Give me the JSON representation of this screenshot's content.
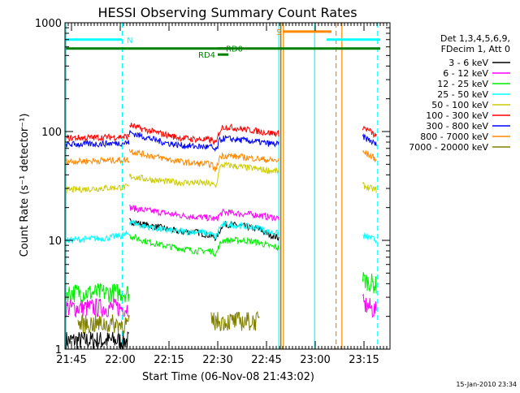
{
  "chart_data": {
    "type": "line",
    "title": "HESSI Observing Summary Count Rates",
    "xlabel": "Start Time (06-Nov-08 21:43:02)",
    "ylabel": "Count Rate (s⁻¹ detector⁻¹)",
    "yscale": "log",
    "ylim": [
      1,
      1000
    ],
    "xlim_minutes": [
      0,
      100
    ],
    "x_unit": "minutes since 21:43:02",
    "x_ticks": [
      {
        "value": 2,
        "label": "21:45"
      },
      {
        "value": 17,
        "label": "22:00"
      },
      {
        "value": 32,
        "label": "22:15"
      },
      {
        "value": 47,
        "label": "22:30"
      },
      {
        "value": 62,
        "label": "22:45"
      },
      {
        "value": 77,
        "label": "23:00"
      },
      {
        "value": 92,
        "label": "23:15"
      }
    ],
    "y_ticks": [
      {
        "value": 1,
        "label": "1"
      },
      {
        "value": 10,
        "label": "10"
      },
      {
        "value": 100,
        "label": "100"
      },
      {
        "value": 1000,
        "label": "1000"
      }
    ],
    "legend": {
      "position": "right",
      "header": [
        "Det 1,3,4,5,6,9,",
        "FDecim 1, Att 0"
      ]
    },
    "series": [
      {
        "name": "3 - 6 keV",
        "color": "#000000",
        "segments": [
          {
            "x": [
              0.3,
              19.8
            ],
            "y": [
              1.2,
              1.2
            ]
          },
          {
            "x": [
              19.8,
              24,
              30,
              35,
              40,
              45,
              46.5,
              47.5,
              48.5,
              50,
              55,
              60,
              62,
              66
            ],
            "y": [
              15,
              14,
              13,
              12,
              12,
              11,
              10.5,
              12,
              14,
              14,
              13.5,
              12.5,
              11.5,
              10.5
            ]
          }
        ]
      },
      {
        "name": "6 - 12 keV",
        "color": "#ff00ff",
        "segments": [
          {
            "x": [
              0.3,
              19.8
            ],
            "y": [
              2.4,
              2.4
            ]
          },
          {
            "x": [
              19.8,
              24,
              30,
              35,
              40,
              45,
              46.5,
              47.5,
              48.5,
              50,
              55,
              60,
              62,
              66
            ],
            "y": [
              20,
              19,
              18,
              17,
              16.5,
              16,
              15.5,
              17,
              18,
              18,
              17.5,
              17,
              16.5,
              16
            ]
          },
          {
            "x": [
              91.6,
              94,
              96
            ],
            "y": [
              2.6,
              2.4,
              2.2
            ]
          }
        ]
      },
      {
        "name": "12 - 25 keV",
        "color": "#00ee00",
        "segments": [
          {
            "x": [
              0.3,
              19.8
            ],
            "y": [
              3.3,
              3.3
            ]
          },
          {
            "x": [
              19.8,
              24,
              30,
              35,
              40,
              45,
              46.5,
              47.5,
              48.5,
              50,
              55,
              60,
              62,
              66
            ],
            "y": [
              11,
              10,
              9,
              8.5,
              8,
              8,
              7.5,
              9,
              10,
              10,
              10,
              9.5,
              9,
              8.5
            ]
          },
          {
            "x": [
              91.6,
              94,
              96
            ],
            "y": [
              4.4,
              4.1,
              3.8
            ]
          }
        ]
      },
      {
        "name": "25 - 50 keV",
        "color": "#00ffff",
        "segments": [
          {
            "x": [
              0.3,
              13,
              19.8
            ],
            "y": [
              10,
              10.5,
              11.5
            ]
          },
          {
            "x": [
              19.8,
              24,
              30,
              35,
              40,
              45,
              46.5,
              47.5,
              48.5,
              50,
              55,
              60,
              62,
              66
            ],
            "y": [
              15,
              13.5,
              12.5,
              12,
              12,
              11.5,
              10.5,
              13,
              14,
              14,
              13.5,
              13,
              12,
              11.5
            ]
          },
          {
            "x": [
              91.6,
              94,
              96
            ],
            "y": [
              11,
              10.5,
              10
            ]
          }
        ]
      },
      {
        "name": "50 - 100 keV",
        "color": "#cccc00",
        "segments": [
          {
            "x": [
              0.3,
              10,
              19.8
            ],
            "y": [
              29,
              30,
              31
            ]
          },
          {
            "x": [
              19.8,
              24,
              30,
              35,
              40,
              45,
              46.5,
              47.5,
              48.5,
              50,
              55,
              60,
              62,
              66
            ],
            "y": [
              39,
              37,
              35,
              34,
              34,
              33,
              31,
              46,
              49,
              49,
              47,
              45,
              44,
              43
            ]
          },
          {
            "x": [
              91.6,
              94,
              96
            ],
            "y": [
              32,
              30,
              29
            ]
          }
        ]
      },
      {
        "name": "100 - 300 keV",
        "color": "#ff0000",
        "segments": [
          {
            "x": [
              0.3,
              10,
              19.8
            ],
            "y": [
              87,
              88,
              90
            ]
          },
          {
            "x": [
              19.8,
              24,
              30,
              35,
              40,
              45,
              46.5,
              47.5,
              48.5,
              50,
              55,
              60,
              62,
              66
            ],
            "y": [
              115,
              105,
              95,
              88,
              85,
              84,
              77,
              100,
              110,
              110,
              105,
              100,
              98,
              95
            ]
          },
          {
            "x": [
              91.6,
              94,
              96
            ],
            "y": [
              110,
              100,
              88
            ]
          }
        ]
      },
      {
        "name": "300 - 800 keV",
        "color": "#0000ff",
        "segments": [
          {
            "x": [
              0.3,
              10,
              19.8
            ],
            "y": [
              76,
              77,
              79
            ]
          },
          {
            "x": [
              19.8,
              24,
              30,
              35,
              40,
              45,
              46.5,
              47.5,
              48.5,
              50,
              55,
              60,
              62,
              66
            ],
            "y": [
              98,
              90,
              80,
              75,
              73,
              72,
              66,
              82,
              86,
              86,
              83,
              80,
              78,
              76
            ]
          },
          {
            "x": [
              91.6,
              94,
              96
            ],
            "y": [
              90,
              82,
              75
            ]
          }
        ]
      },
      {
        "name": "800 - 7000 keV",
        "color": "#ff8800",
        "segments": [
          {
            "x": [
              0.3,
              10,
              19.8
            ],
            "y": [
              53,
              54,
              55
            ]
          },
          {
            "x": [
              19.8,
              24,
              30,
              35,
              40,
              45,
              46.5,
              47.5,
              48.5,
              50,
              55,
              60,
              62,
              66
            ],
            "y": [
              67,
              62,
              57,
              53,
              51,
              50,
              44,
              58,
              60,
              60,
              58,
              56,
              55,
              54
            ]
          },
          {
            "x": [
              91.6,
              94,
              96
            ],
            "y": [
              65,
              60,
              55
            ]
          }
        ]
      },
      {
        "name": "7000 - 20000 keV",
        "color": "#808000",
        "segments": [
          {
            "x": [
              4,
              20
            ],
            "y": [
              1.7,
              1.7
            ]
          },
          {
            "x": [
              45,
              60
            ],
            "y": [
              1.8,
              1.8
            ]
          },
          {
            "x": [
              66.4,
              66.4
            ],
            "y": [
              1,
              1000
            ]
          }
        ]
      }
    ],
    "state_bars": [
      {
        "label": "N",
        "color": "#00ffff",
        "x": [
          0.3,
          17.5
        ],
        "y": 700,
        "label_at": 19
      },
      {
        "label": "",
        "color": "#00ffff",
        "x": [
          80.5,
          97
        ],
        "y": 700,
        "label_at": null
      },
      {
        "label": "S",
        "color": "#ff8800",
        "x": [
          67,
          82
        ],
        "y": 830,
        "label_at": 65
      },
      {
        "label": "",
        "color": "#008000",
        "x": [
          0.3,
          97
        ],
        "y": 580,
        "label_at": null
      },
      {
        "label": "RD0",
        "color": "#008000",
        "x": [
          47,
          51
        ],
        "y": 580,
        "label_at": 49.5
      },
      {
        "label": "RD4",
        "color": "#008000",
        "x": [
          47,
          50.3
        ],
        "y": 510,
        "label_at": 41
      }
    ],
    "vertical_lines": [
      {
        "x": 0.3,
        "color": "#00ffff",
        "style": "solid"
      },
      {
        "x": 17.6,
        "color": "#00ffff",
        "style": "dashed"
      },
      {
        "x": 65.8,
        "color": "#00ffff",
        "style": "solid"
      },
      {
        "x": 67.2,
        "color": "#ff8800",
        "style": "solid"
      },
      {
        "x": 76.8,
        "color": "#00ffff",
        "style": "solid"
      },
      {
        "x": 83.4,
        "color": "#ff8800",
        "style": "dashed"
      },
      {
        "x": 85.2,
        "color": "#ff8800",
        "style": "solid"
      },
      {
        "x": 96.2,
        "color": "#00ffff",
        "style": "dashed"
      }
    ],
    "footer_timestamp": "15-Jan-2010 23:34"
  }
}
